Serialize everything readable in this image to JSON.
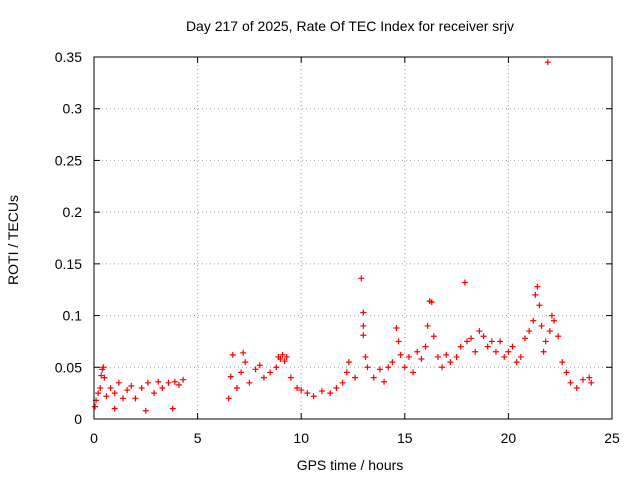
{
  "chart_data": {
    "type": "scatter",
    "title": "Day 217 of 2025, Rate Of TEC Index for receiver srjv",
    "xlabel": "GPS time / hours",
    "ylabel": "ROTI / TECUs",
    "xlim": [
      0,
      25
    ],
    "ylim": [
      0,
      0.35
    ],
    "x_ticks": [
      0,
      5,
      10,
      15,
      20,
      25
    ],
    "y_ticks": [
      0,
      0.05,
      0.1,
      0.15,
      0.2,
      0.25,
      0.3,
      0.35
    ],
    "x_tick_labels": [
      "0",
      "5",
      "10",
      "15",
      "20",
      "25"
    ],
    "y_tick_labels": [
      "0",
      "0.05",
      "0.1",
      "0.15",
      "0.2",
      "0.25",
      "0.3",
      "0.35"
    ],
    "grid": true,
    "marker": "+",
    "color": "#ff0000",
    "series": [
      {
        "name": "ROTI",
        "points": [
          [
            0.05,
            0.012
          ],
          [
            0.1,
            0.018
          ],
          [
            0.2,
            0.025
          ],
          [
            0.3,
            0.03
          ],
          [
            0.35,
            0.042
          ],
          [
            0.4,
            0.048
          ],
          [
            0.45,
            0.05
          ],
          [
            0.5,
            0.04
          ],
          [
            0.6,
            0.022
          ],
          [
            0.8,
            0.03
          ],
          [
            1.0,
            0.025
          ],
          [
            1.2,
            0.035
          ],
          [
            1.4,
            0.02
          ],
          [
            1.6,
            0.028
          ],
          [
            1.8,
            0.032
          ],
          [
            2.0,
            0.02
          ],
          [
            2.3,
            0.03
          ],
          [
            2.6,
            0.035
          ],
          [
            2.9,
            0.025
          ],
          [
            3.1,
            0.036
          ],
          [
            3.3,
            0.03
          ],
          [
            3.6,
            0.035
          ],
          [
            3.9,
            0.036
          ],
          [
            4.1,
            0.033
          ],
          [
            4.3,
            0.038
          ],
          [
            1.0,
            0.01
          ],
          [
            2.5,
            0.008
          ],
          [
            3.8,
            0.01
          ],
          [
            6.5,
            0.02
          ],
          [
            6.6,
            0.041
          ],
          [
            6.7,
            0.062
          ],
          [
            6.9,
            0.03
          ],
          [
            7.1,
            0.045
          ],
          [
            7.2,
            0.064
          ],
          [
            7.3,
            0.055
          ],
          [
            7.5,
            0.035
          ],
          [
            7.8,
            0.048
          ],
          [
            8.0,
            0.052
          ],
          [
            8.2,
            0.04
          ],
          [
            8.5,
            0.045
          ],
          [
            8.8,
            0.05
          ],
          [
            8.9,
            0.06
          ],
          [
            9.0,
            0.058
          ],
          [
            9.1,
            0.062
          ],
          [
            9.2,
            0.056
          ],
          [
            9.3,
            0.06
          ],
          [
            9.5,
            0.04
          ],
          [
            9.8,
            0.03
          ],
          [
            10.0,
            0.028
          ],
          [
            10.3,
            0.025
          ],
          [
            10.6,
            0.022
          ],
          [
            11.0,
            0.027
          ],
          [
            11.4,
            0.025
          ],
          [
            11.7,
            0.03
          ],
          [
            12.0,
            0.035
          ],
          [
            12.2,
            0.045
          ],
          [
            12.3,
            0.055
          ],
          [
            12.6,
            0.04
          ],
          [
            12.9,
            0.136
          ],
          [
            13.0,
            0.103
          ],
          [
            13.0,
            0.09
          ],
          [
            13.0,
            0.081
          ],
          [
            13.1,
            0.06
          ],
          [
            13.2,
            0.05
          ],
          [
            13.5,
            0.04
          ],
          [
            13.8,
            0.048
          ],
          [
            14.0,
            0.036
          ],
          [
            14.2,
            0.05
          ],
          [
            14.4,
            0.055
          ],
          [
            14.6,
            0.088
          ],
          [
            14.7,
            0.075
          ],
          [
            14.8,
            0.062
          ],
          [
            15.0,
            0.05
          ],
          [
            15.2,
            0.06
          ],
          [
            15.4,
            0.045
          ],
          [
            15.6,
            0.065
          ],
          [
            15.8,
            0.058
          ],
          [
            16.0,
            0.07
          ],
          [
            16.1,
            0.09
          ],
          [
            16.2,
            0.114
          ],
          [
            16.3,
            0.113
          ],
          [
            16.4,
            0.08
          ],
          [
            16.6,
            0.06
          ],
          [
            16.8,
            0.05
          ],
          [
            17.0,
            0.062
          ],
          [
            17.2,
            0.055
          ],
          [
            17.5,
            0.06
          ],
          [
            17.7,
            0.07
          ],
          [
            17.9,
            0.132
          ],
          [
            18.0,
            0.075
          ],
          [
            18.2,
            0.078
          ],
          [
            18.4,
            0.065
          ],
          [
            18.6,
            0.085
          ],
          [
            18.8,
            0.08
          ],
          [
            19.0,
            0.07
          ],
          [
            19.2,
            0.075
          ],
          [
            19.4,
            0.065
          ],
          [
            19.6,
            0.075
          ],
          [
            19.8,
            0.06
          ],
          [
            20.0,
            0.065
          ],
          [
            20.2,
            0.07
          ],
          [
            20.4,
            0.055
          ],
          [
            20.6,
            0.06
          ],
          [
            20.8,
            0.078
          ],
          [
            21.0,
            0.085
          ],
          [
            21.2,
            0.095
          ],
          [
            21.3,
            0.12
          ],
          [
            21.4,
            0.128
          ],
          [
            21.5,
            0.11
          ],
          [
            21.6,
            0.09
          ],
          [
            21.7,
            0.065
          ],
          [
            21.8,
            0.075
          ],
          [
            21.9,
            0.345
          ],
          [
            22.0,
            0.085
          ],
          [
            22.1,
            0.1
          ],
          [
            22.2,
            0.095
          ],
          [
            22.4,
            0.08
          ],
          [
            22.6,
            0.055
          ],
          [
            22.8,
            0.045
          ],
          [
            23.0,
            0.035
          ],
          [
            23.3,
            0.03
          ],
          [
            23.6,
            0.038
          ],
          [
            23.9,
            0.04
          ],
          [
            24.0,
            0.035
          ]
        ]
      }
    ]
  }
}
